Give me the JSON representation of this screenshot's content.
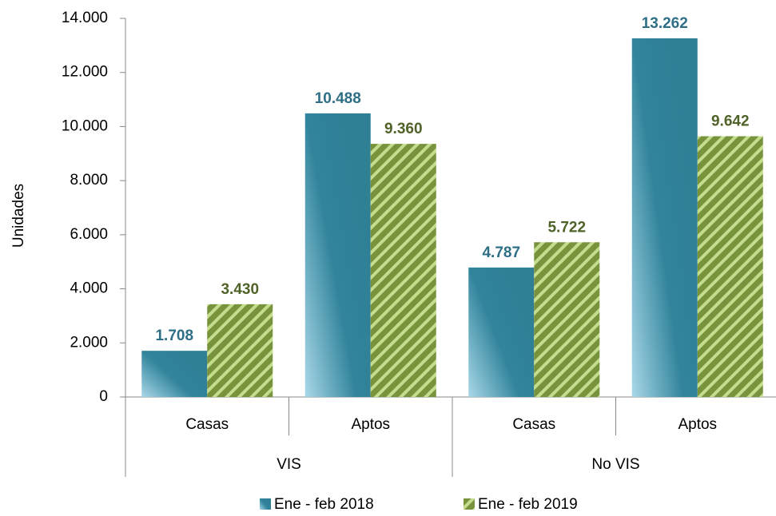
{
  "chart_data": {
    "type": "bar",
    "y_label": "Unidades",
    "groups": [
      {
        "name": "VIS",
        "categories": [
          "Casas",
          "Aptos"
        ]
      },
      {
        "name": "No VIS",
        "categories": [
          "Casas",
          "Aptos"
        ]
      }
    ],
    "series": [
      {
        "name": "Ene - feb 2018",
        "color": "#31849b",
        "label_color": "#2e6f86",
        "values": [
          1708,
          10488,
          4787,
          13262
        ],
        "value_labels": [
          "1.708",
          "10.488",
          "4.787",
          "13.262"
        ]
      },
      {
        "name": "Ene - feb 2019",
        "color": "#77933c",
        "label_color": "#4f6228",
        "pattern": "hatch",
        "values": [
          3430,
          9360,
          5722,
          9642
        ],
        "value_labels": [
          "3.430",
          "9.360",
          "5.722",
          "9.642"
        ]
      }
    ],
    "ylim": [
      0,
      14000
    ],
    "yticks": [
      0,
      {
        "value": 2000,
        "label": "2.000"
      },
      {
        "value": 4000,
        "label": "4.000"
      },
      {
        "value": 6000,
        "label": "6.000"
      },
      {
        "value": 8000,
        "label": "8.000"
      },
      {
        "value": 10000,
        "label": "10.000"
      },
      {
        "value": 12000,
        "label": "12.000"
      },
      {
        "value": 14000,
        "label": "14.000"
      }
    ]
  }
}
